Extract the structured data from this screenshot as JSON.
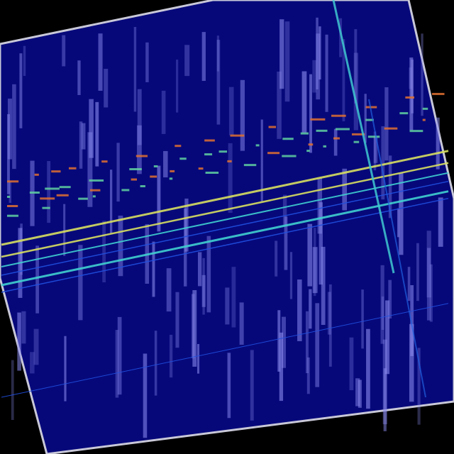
{
  "image": {
    "kind": "rotated spectrogram waterfall",
    "colors": {
      "background": "#000000",
      "plot_fill": "#06087a",
      "border": "#c8c8d8",
      "streak": "#8c8cf0",
      "line_yellow": "#d8e060",
      "line_cyan": "#40d0d0",
      "line_blue": "#2050e0",
      "dash_orange": "#e07030",
      "dash_green": "#60d0a0"
    }
  }
}
